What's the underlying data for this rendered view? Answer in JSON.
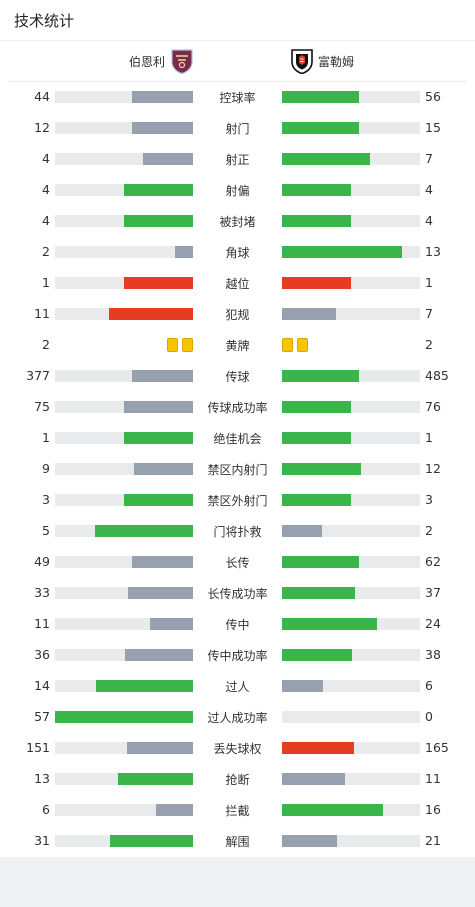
{
  "header": {
    "title": "技术统计"
  },
  "teams": {
    "home": {
      "name": "伯恩利"
    },
    "away": {
      "name": "富勒姆"
    }
  },
  "colors": {
    "grey": "#96a0ae",
    "green": "#3ab54a",
    "red": "#e53c22",
    "track": "#e9eaec",
    "card": "#f7c500"
  },
  "stats": [
    {
      "label": "控球率",
      "home": "44",
      "away": "56",
      "home_frac": 0.44,
      "away_frac": 0.56,
      "home_color": "grey",
      "away_color": "green"
    },
    {
      "label": "射门",
      "home": "12",
      "away": "15",
      "home_frac": 0.44,
      "away_frac": 0.56,
      "home_color": "grey",
      "away_color": "green"
    },
    {
      "label": "射正",
      "home": "4",
      "away": "7",
      "home_frac": 0.36,
      "away_frac": 0.64,
      "home_color": "grey",
      "away_color": "green"
    },
    {
      "label": "射偏",
      "home": "4",
      "away": "4",
      "home_frac": 0.5,
      "away_frac": 0.5,
      "home_color": "green",
      "away_color": "green"
    },
    {
      "label": "被封堵",
      "home": "4",
      "away": "4",
      "home_frac": 0.5,
      "away_frac": 0.5,
      "home_color": "green",
      "away_color": "green"
    },
    {
      "label": "角球",
      "home": "2",
      "away": "13",
      "home_frac": 0.13,
      "away_frac": 0.87,
      "home_color": "grey",
      "away_color": "green"
    },
    {
      "label": "越位",
      "home": "1",
      "away": "1",
      "home_frac": 0.5,
      "away_frac": 0.5,
      "home_color": "red",
      "away_color": "red"
    },
    {
      "label": "犯规",
      "home": "11",
      "away": "7",
      "home_frac": 0.61,
      "away_frac": 0.39,
      "home_color": "red",
      "away_color": "grey"
    },
    {
      "label": "黄牌",
      "home": "2",
      "away": "2",
      "home_cards": 2,
      "away_cards": 2
    },
    {
      "label": "传球",
      "home": "377",
      "away": "485",
      "home_frac": 0.44,
      "away_frac": 0.56,
      "home_color": "grey",
      "away_color": "green"
    },
    {
      "label": "传球成功率",
      "home": "75",
      "away": "76",
      "home_frac": 0.5,
      "away_frac": 0.5,
      "home_color": "grey",
      "away_color": "green"
    },
    {
      "label": "绝佳机会",
      "home": "1",
      "away": "1",
      "home_frac": 0.5,
      "away_frac": 0.5,
      "home_color": "green",
      "away_color": "green"
    },
    {
      "label": "禁区内射门",
      "home": "9",
      "away": "12",
      "home_frac": 0.43,
      "away_frac": 0.57,
      "home_color": "grey",
      "away_color": "green"
    },
    {
      "label": "禁区外射门",
      "home": "3",
      "away": "3",
      "home_frac": 0.5,
      "away_frac": 0.5,
      "home_color": "green",
      "away_color": "green"
    },
    {
      "label": "门将扑救",
      "home": "5",
      "away": "2",
      "home_frac": 0.71,
      "away_frac": 0.29,
      "home_color": "green",
      "away_color": "grey"
    },
    {
      "label": "长传",
      "home": "49",
      "away": "62",
      "home_frac": 0.44,
      "away_frac": 0.56,
      "home_color": "grey",
      "away_color": "green"
    },
    {
      "label": "长传成功率",
      "home": "33",
      "away": "37",
      "home_frac": 0.47,
      "away_frac": 0.53,
      "home_color": "grey",
      "away_color": "green"
    },
    {
      "label": "传中",
      "home": "11",
      "away": "24",
      "home_frac": 0.31,
      "away_frac": 0.69,
      "home_color": "grey",
      "away_color": "green"
    },
    {
      "label": "传中成功率",
      "home": "36",
      "away": "38",
      "home_frac": 0.49,
      "away_frac": 0.51,
      "home_color": "grey",
      "away_color": "green"
    },
    {
      "label": "过人",
      "home": "14",
      "away": "6",
      "home_frac": 0.7,
      "away_frac": 0.3,
      "home_color": "green",
      "away_color": "grey"
    },
    {
      "label": "过人成功率",
      "home": "57",
      "away": "0",
      "home_frac": 1.0,
      "away_frac": 0.0,
      "home_color": "green",
      "away_color": "grey"
    },
    {
      "label": "丢失球权",
      "home": "151",
      "away": "165",
      "home_frac": 0.48,
      "away_frac": 0.52,
      "home_color": "grey",
      "away_color": "red"
    },
    {
      "label": "抢断",
      "home": "13",
      "away": "11",
      "home_frac": 0.54,
      "away_frac": 0.46,
      "home_color": "green",
      "away_color": "grey"
    },
    {
      "label": "拦截",
      "home": "6",
      "away": "16",
      "home_frac": 0.27,
      "away_frac": 0.73,
      "home_color": "grey",
      "away_color": "green"
    },
    {
      "label": "解围",
      "home": "31",
      "away": "21",
      "home_frac": 0.6,
      "away_frac": 0.4,
      "home_color": "green",
      "away_color": "grey"
    }
  ]
}
